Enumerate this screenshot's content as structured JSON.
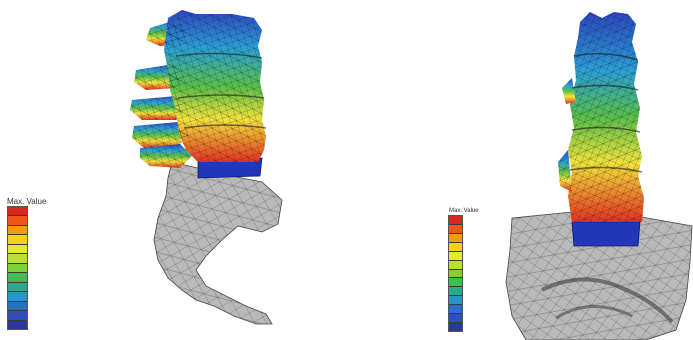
{
  "figure": {
    "left_panel": {
      "view": "lateral",
      "legend": {
        "label": "Max. Value",
        "colors": [
          "#d62a1e",
          "#ea5a16",
          "#f59a17",
          "#f7d21c",
          "#e4ea2c",
          "#b9e033",
          "#7ed03c",
          "#43bb52",
          "#2aa98d",
          "#2a95c4",
          "#2a6fc7",
          "#2e4dbf",
          "#2b3799"
        ]
      }
    },
    "right_panel": {
      "view": "posterior",
      "legend": {
        "label": "Max. Value",
        "colors": [
          "#d62a1e",
          "#ea5a16",
          "#f59a17",
          "#f7d21c",
          "#e4ea2c",
          "#b9e033",
          "#7ed03c",
          "#43bb52",
          "#2aa98d",
          "#2a95c4",
          "#2a6fc7",
          "#2e4dbf",
          "#2b3799"
        ]
      }
    },
    "model_colors": {
      "top": "#2b46c2",
      "upper": "#2a9fd6",
      "middle": "#57c04a",
      "lower": "#f2e23a",
      "bottom": "#e43020",
      "disc": "#2236b8",
      "bone": "#b9b9b9"
    }
  }
}
